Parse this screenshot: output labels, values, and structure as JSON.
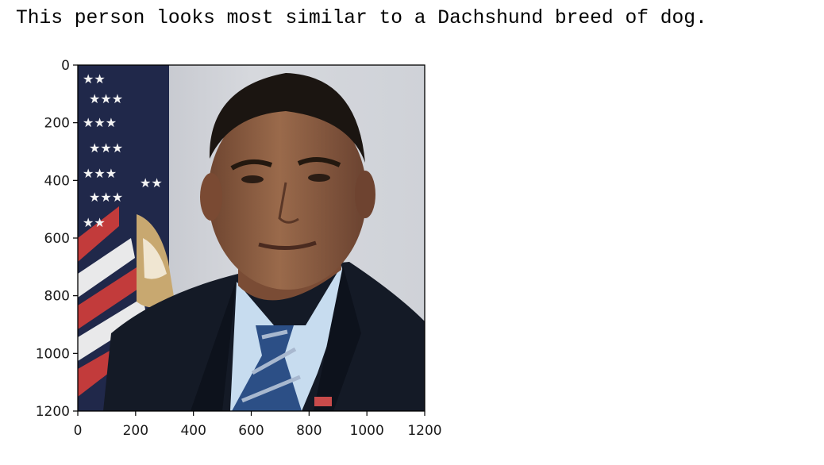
{
  "output": {
    "text": "This person looks most similar to a Dachshund breed of dog."
  },
  "figure": {
    "image_description": "portrait photograph",
    "x_ticks": [
      "0",
      "200",
      "400",
      "600",
      "800",
      "1000",
      "1200"
    ],
    "y_ticks": [
      "0",
      "200",
      "400",
      "600",
      "800",
      "1000",
      "1200"
    ],
    "x_range": [
      0,
      1200
    ],
    "y_range": [
      0,
      1200
    ],
    "colors": {
      "background_wall": "#c9ccd3",
      "suit": "#141a26",
      "shirt": "#c7dcef",
      "tie": "#2c4f86",
      "skin": "#8a5a3e",
      "hair": "#1b1511",
      "flag_red": "#c23b3b",
      "flag_blue": "#20284a"
    }
  }
}
